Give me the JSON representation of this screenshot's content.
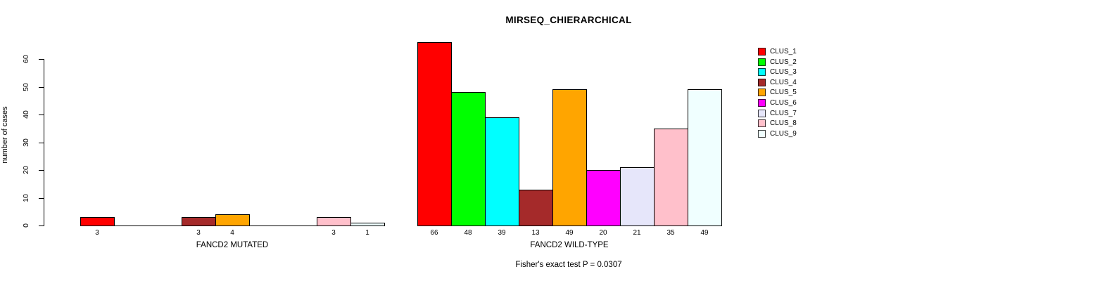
{
  "chart_data": {
    "type": "bar",
    "title": "MIRSEQ_CHIERARCHICAL",
    "ylabel": "number of cases",
    "xlabel": "",
    "ylim": [
      0,
      66
    ],
    "yticks": [
      0,
      10,
      20,
      30,
      40,
      50,
      60
    ],
    "grid": false,
    "legend_position": "top-right",
    "axis_color": "#000000",
    "text_color": "#000000",
    "series_labels": [
      "CLUS_1",
      "CLUS_2",
      "CLUS_3",
      "CLUS_4",
      "CLUS_5",
      "CLUS_6",
      "CLUS_7",
      "CLUS_8",
      "CLUS_9"
    ],
    "series_colors": [
      "#FF0000",
      "#00FF00",
      "#00FFFF",
      "#A52A2A",
      "#FFA500",
      "#FF00FF",
      "#E6E6FA",
      "#FFC0CB",
      "#F0FFFF"
    ],
    "groups": [
      {
        "label": "FANCD2 MUTATED",
        "values": [
          3,
          0,
          0,
          3,
          4,
          0,
          0,
          3,
          1
        ]
      },
      {
        "label": "FANCD2 WILD-TYPE",
        "values": [
          66,
          48,
          39,
          13,
          49,
          20,
          21,
          35,
          49
        ]
      }
    ],
    "footnote": "Fisher's exact test P = 0.0307"
  }
}
